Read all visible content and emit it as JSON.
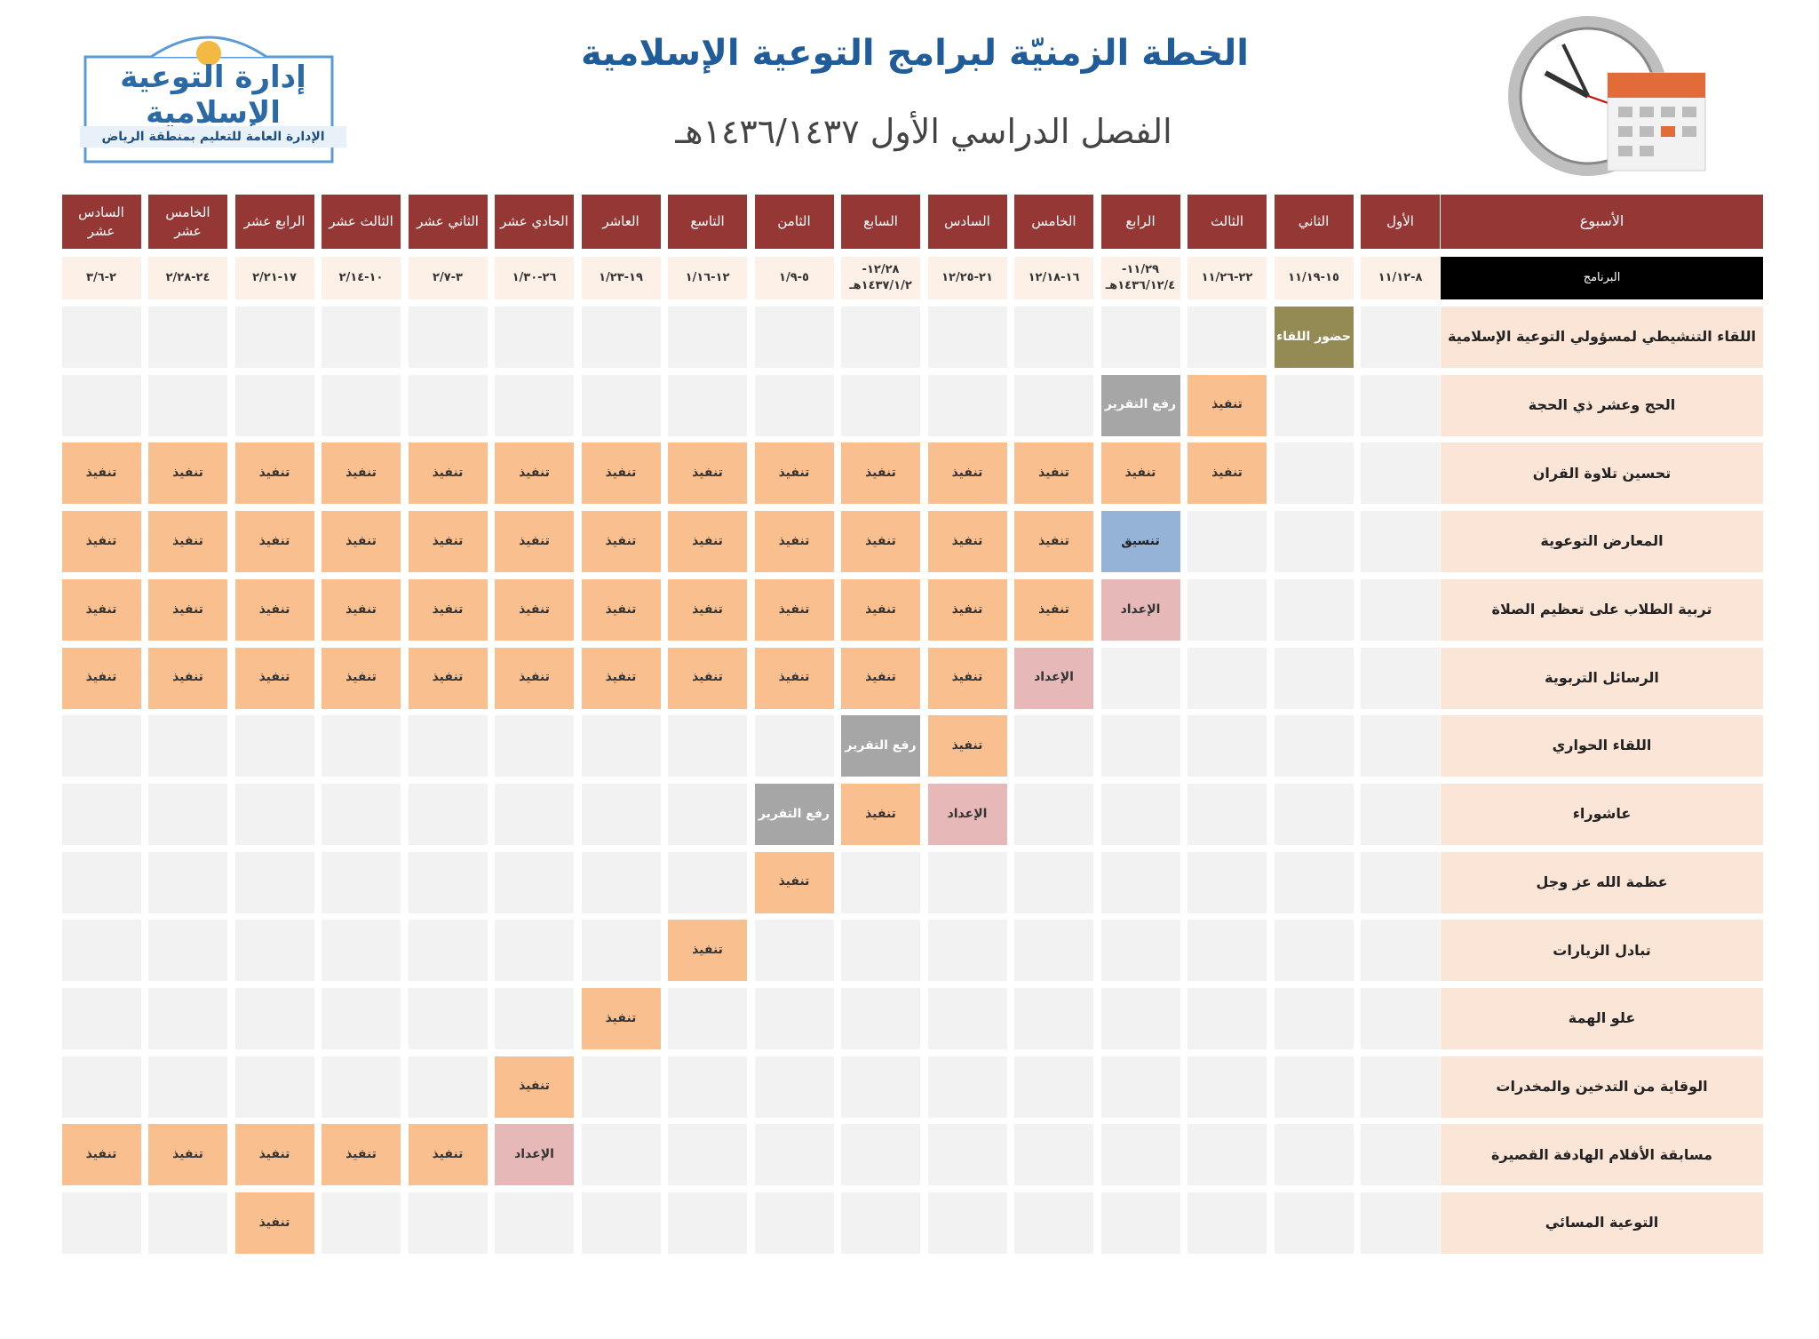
{
  "header": {
    "logo_title": "إدارة التوعية الإسلامية",
    "logo_subtitle": "الإدارة العامة للتعليم بمنطقة الرياض",
    "title": "الخطة الزمنيّة لبرامج التوعية الإسلامية",
    "subtitle": "الفصل الدراسي الأول ١٤٣٦/١٤٣٧هـ"
  },
  "table": {
    "week_label": "الأسبوع",
    "program_label": "البرنامج",
    "weeks": [
      {
        "name": "الأول",
        "dates": "٨-١١/١٢"
      },
      {
        "name": "الثاني",
        "dates": "١٥-١١/١٩"
      },
      {
        "name": "الثالث",
        "dates": "٢٢-١١/٢٦"
      },
      {
        "name": "الرابع",
        "dates": "١١/٢٩- ١٤٣٦/١٢/٤هـ"
      },
      {
        "name": "الخامس",
        "dates": "١٦-١٢/١٨"
      },
      {
        "name": "السادس",
        "dates": "٢١-١٢/٢٥"
      },
      {
        "name": "السابع",
        "dates": "١٢/٢٨- ١٤٣٧/١/٢هـ"
      },
      {
        "name": "الثامن",
        "dates": "٥-١/٩"
      },
      {
        "name": "التاسع",
        "dates": "١٢-١/١٦"
      },
      {
        "name": "العاشر",
        "dates": "١٩-١/٢٣"
      },
      {
        "name": "الحادي عشر",
        "dates": "٢٦-١/٣٠"
      },
      {
        "name": "الثاني عشر",
        "dates": "٣-٢/٧"
      },
      {
        "name": "الثالث عشر",
        "dates": "١٠-٢/١٤"
      },
      {
        "name": "الرابع عشر",
        "dates": "١٧-٢/٢١"
      },
      {
        "name": "الخامس عشر",
        "dates": "٢٤-٢/٢٨"
      },
      {
        "name": "السادس عشر",
        "dates": "٢-٣/٦"
      }
    ],
    "cell_styles": {
      "تنفيذ": {
        "bg": "#f9bf8f",
        "fg": "#333"
      },
      "رفع التقرير": {
        "bg": "#a6a6a6",
        "fg": "#fff"
      },
      "الإعداد": {
        "bg": "#e6b9b8",
        "fg": "#333"
      },
      "تنسيق": {
        "bg": "#95b3d7",
        "fg": "#222"
      },
      "حضور اللقاء": {
        "bg": "#948a54",
        "fg": "#fff"
      }
    },
    "rows": [
      {
        "name": "اللقاء التنشيطي لمسؤولي التوعية الإسلامية",
        "cells": [
          null,
          "حضور اللقاء",
          null,
          null,
          null,
          null,
          null,
          null,
          null,
          null,
          null,
          null,
          null,
          null,
          null,
          null
        ]
      },
      {
        "name": "الحج وعشر ذي الحجة",
        "cells": [
          null,
          null,
          "تنفيذ",
          "رفع التقرير",
          null,
          null,
          null,
          null,
          null,
          null,
          null,
          null,
          null,
          null,
          null,
          null
        ]
      },
      {
        "name": "تحسين تلاوة القران",
        "cells": [
          null,
          null,
          "تنفيذ",
          "تنفيذ",
          "تنفيذ",
          "تنفيذ",
          "تنفيذ",
          "تنفيذ",
          "تنفيذ",
          "تنفيذ",
          "تنفيذ",
          "تنفيذ",
          "تنفيذ",
          "تنفيذ",
          "تنفيذ",
          "تنفيذ"
        ]
      },
      {
        "name": "المعارض التوعوية",
        "cells": [
          null,
          null,
          null,
          "تنسيق",
          "تنفيذ",
          "تنفيذ",
          "تنفيذ",
          "تنفيذ",
          "تنفيذ",
          "تنفيذ",
          "تنفيذ",
          "تنفيذ",
          "تنفيذ",
          "تنفيذ",
          "تنفيذ",
          "تنفيذ"
        ]
      },
      {
        "name": "تربية الطلاب على تعظيم الصلاة",
        "cells": [
          null,
          null,
          null,
          "الإعداد",
          "تنفيذ",
          "تنفيذ",
          "تنفيذ",
          "تنفيذ",
          "تنفيذ",
          "تنفيذ",
          "تنفيذ",
          "تنفيذ",
          "تنفيذ",
          "تنفيذ",
          "تنفيذ",
          "تنفيذ"
        ]
      },
      {
        "name": "الرسائل التربوية",
        "cells": [
          null,
          null,
          null,
          null,
          "الإعداد",
          "تنفيذ",
          "تنفيذ",
          "تنفيذ",
          "تنفيذ",
          "تنفيذ",
          "تنفيذ",
          "تنفيذ",
          "تنفيذ",
          "تنفيذ",
          "تنفيذ",
          "تنفيذ"
        ]
      },
      {
        "name": "اللقاء الحواري",
        "cells": [
          null,
          null,
          null,
          null,
          null,
          "تنفيذ",
          "رفع التقرير",
          null,
          null,
          null,
          null,
          null,
          null,
          null,
          null,
          null
        ]
      },
      {
        "name": "عاشوراء",
        "cells": [
          null,
          null,
          null,
          null,
          null,
          "الإعداد",
          "تنفيذ",
          "رفع التقرير",
          null,
          null,
          null,
          null,
          null,
          null,
          null,
          null
        ]
      },
      {
        "name": "عظمة الله عز وجل",
        "cells": [
          null,
          null,
          null,
          null,
          null,
          null,
          null,
          "تنفيذ",
          null,
          null,
          null,
          null,
          null,
          null,
          null,
          null
        ]
      },
      {
        "name": "تبادل الزيارات",
        "cells": [
          null,
          null,
          null,
          null,
          null,
          null,
          null,
          null,
          "تنفيذ",
          null,
          null,
          null,
          null,
          null,
          null,
          null
        ]
      },
      {
        "name": "علو الهمة",
        "cells": [
          null,
          null,
          null,
          null,
          null,
          null,
          null,
          null,
          null,
          "تنفيذ",
          null,
          null,
          null,
          null,
          null,
          null
        ]
      },
      {
        "name": "الوقاية من التدخين والمخدرات",
        "cells": [
          null,
          null,
          null,
          null,
          null,
          null,
          null,
          null,
          null,
          null,
          "تنفيذ",
          null,
          null,
          null,
          null,
          null
        ]
      },
      {
        "name": "مسابقة الأفلام الهادفة القصيرة",
        "cells": [
          null,
          null,
          null,
          null,
          null,
          null,
          null,
          null,
          null,
          null,
          "الإعداد",
          "تنفيذ",
          "تنفيذ",
          "تنفيذ",
          "تنفيذ",
          "تنفيذ"
        ]
      },
      {
        "name": "التوعية المسائي",
        "cells": [
          null,
          null,
          null,
          null,
          null,
          null,
          null,
          null,
          null,
          null,
          null,
          null,
          null,
          "تنفيذ",
          null,
          null
        ]
      }
    ]
  }
}
